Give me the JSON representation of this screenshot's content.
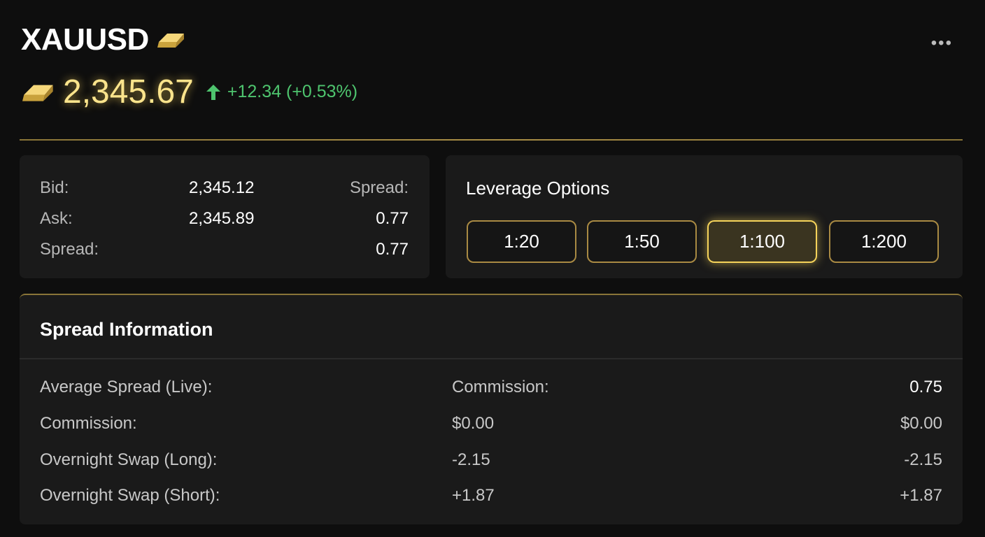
{
  "header": {
    "symbol": "XAUUSD",
    "price": "2,345.67",
    "change": "+12.34 (+0.53%)",
    "direction": "up",
    "more_icon": "ellipsis-icon",
    "accent": "#fbe48c",
    "positive": "#4ec46e"
  },
  "quote": {
    "bid_label": "Bid:",
    "bid": "2,345.12",
    "ask_label": "Ask:",
    "ask": "2,345.89",
    "spread_label": "Spread:",
    "spread": "0.77",
    "right_label": "Spread:",
    "right_value": "0.77"
  },
  "leverage": {
    "title": "Leverage Options",
    "options": [
      "1:20",
      "1:50",
      "1:100",
      "1:200"
    ],
    "selected": "1:100"
  },
  "spread_info": {
    "title": "Spread Information",
    "rows": [
      {
        "label": "Average Spread (Live):",
        "col2": "Commission:",
        "col3": "0.75"
      },
      {
        "label": "Commission:",
        "col2": "$0.00",
        "col3": "$0.00"
      },
      {
        "label": "Overnight Swap (Long):",
        "col2": "-2.15",
        "col3": "-2.15"
      },
      {
        "label": "Overnight Swap (Short):",
        "col2": "+1.87",
        "col3": "+1.87"
      }
    ]
  }
}
